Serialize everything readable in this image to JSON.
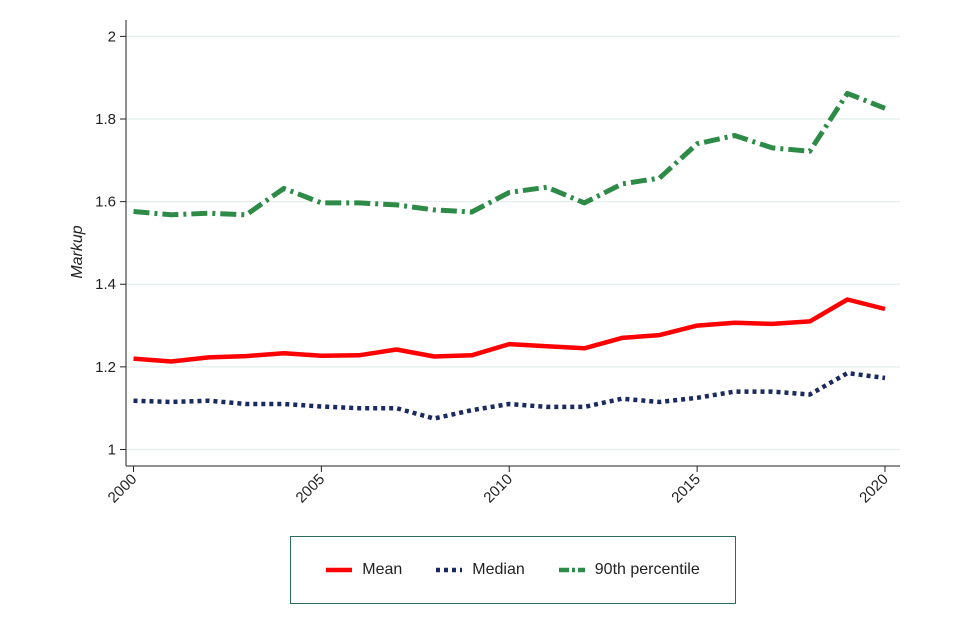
{
  "chart_data": {
    "type": "line",
    "title": "",
    "xlabel": "",
    "ylabel": "Markup",
    "x": [
      2000,
      2001,
      2002,
      2003,
      2004,
      2005,
      2006,
      2007,
      2008,
      2009,
      2010,
      2011,
      2012,
      2013,
      2014,
      2015,
      2016,
      2017,
      2018,
      2019,
      2020
    ],
    "xticks": [
      "2000",
      "2005",
      "2010",
      "2015",
      "2020"
    ],
    "yticks": [
      "1",
      "1.2",
      "1.4",
      "1.6",
      "1.8",
      "2"
    ],
    "xlim": [
      1999.8,
      2020.4
    ],
    "ylim": [
      0.96,
      2.03
    ],
    "grid": true,
    "legend_position": "bottom",
    "series": [
      {
        "name": "Mean",
        "color": "#ff0000",
        "style": "solid",
        "values": [
          1.22,
          1.213,
          1.223,
          1.226,
          1.233,
          1.227,
          1.228,
          1.242,
          1.225,
          1.228,
          1.255,
          1.25,
          1.245,
          1.27,
          1.277,
          1.3,
          1.307,
          1.304,
          1.31,
          1.363,
          1.34
        ]
      },
      {
        "name": "Median",
        "color": "#1a2a5e",
        "style": "dotted",
        "values": [
          1.118,
          1.115,
          1.118,
          1.11,
          1.11,
          1.104,
          1.1,
          1.1,
          1.075,
          1.095,
          1.11,
          1.103,
          1.103,
          1.123,
          1.115,
          1.125,
          1.14,
          1.14,
          1.133,
          1.185,
          1.173
        ]
      },
      {
        "name": "90th percentile",
        "color": "#2e8b47",
        "style": "dashdot",
        "values": [
          1.576,
          1.568,
          1.572,
          1.568,
          1.632,
          1.597,
          1.597,
          1.592,
          1.58,
          1.575,
          1.622,
          1.635,
          1.597,
          1.643,
          1.657,
          1.74,
          1.76,
          1.73,
          1.722,
          1.862,
          1.826
        ]
      }
    ]
  }
}
